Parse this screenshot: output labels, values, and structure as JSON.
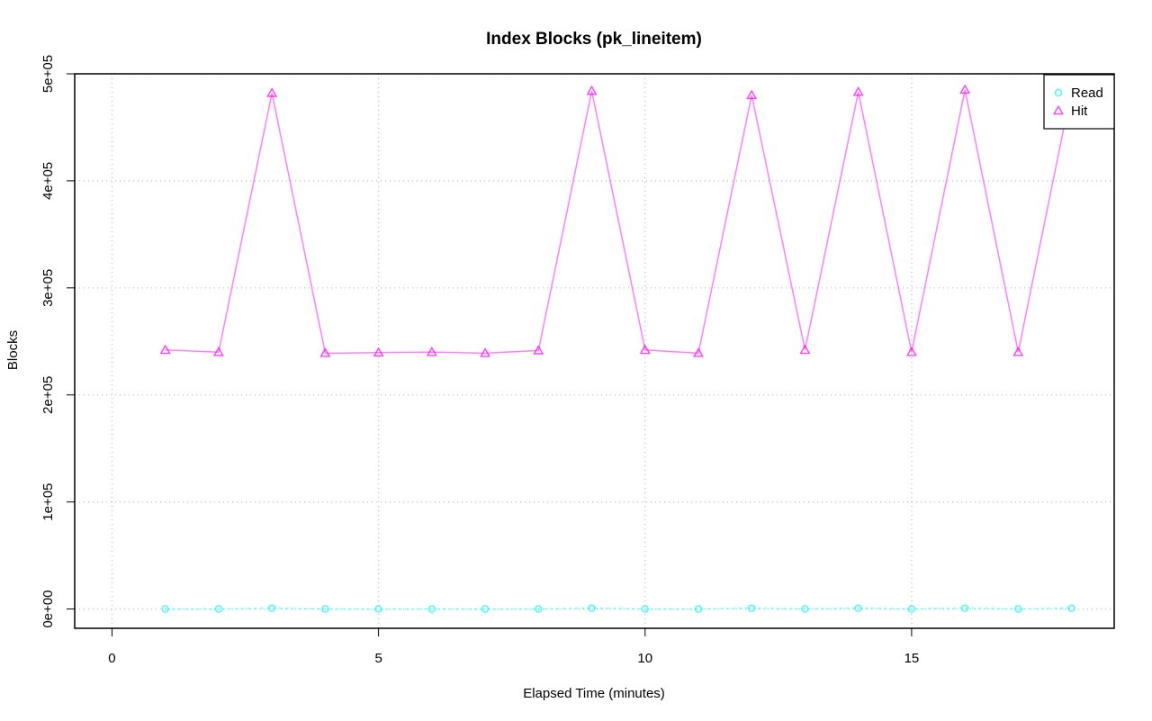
{
  "chart_data": {
    "type": "line",
    "title": "Index Blocks (pk_lineitem)",
    "xlabel": "Elapsed Time (minutes)",
    "ylabel": "Blocks",
    "xlim": [
      -0.7,
      18.8
    ],
    "ylim": [
      -18000,
      500000
    ],
    "x_ticks": [
      0,
      5,
      10,
      15
    ],
    "y_ticks": [
      0,
      100000,
      200000,
      300000,
      400000,
      500000
    ],
    "y_tick_labels": [
      "0e+00",
      "1e+05",
      "2e+05",
      "3e+05",
      "4e+05",
      "5e+05"
    ],
    "grid": true,
    "legend_position": "top-right",
    "x": [
      1,
      2,
      3,
      4,
      5,
      6,
      7,
      8,
      9,
      10,
      11,
      12,
      13,
      14,
      15,
      16,
      17,
      18
    ],
    "series": [
      {
        "name": "Read",
        "color": "#00ffff",
        "marker": "circle",
        "values": [
          0,
          0,
          800,
          0,
          0,
          0,
          0,
          0,
          800,
          0,
          0,
          800,
          0,
          800,
          0,
          800,
          0,
          800
        ]
      },
      {
        "name": "Hit",
        "color": "#ff00ff",
        "marker": "triangle",
        "values": [
          242000,
          240000,
          482000,
          239000,
          239500,
          240000,
          239000,
          241500,
          484000,
          242000,
          239000,
          480000,
          242000,
          483000,
          240000,
          485000,
          240000,
          485000
        ]
      }
    ]
  }
}
